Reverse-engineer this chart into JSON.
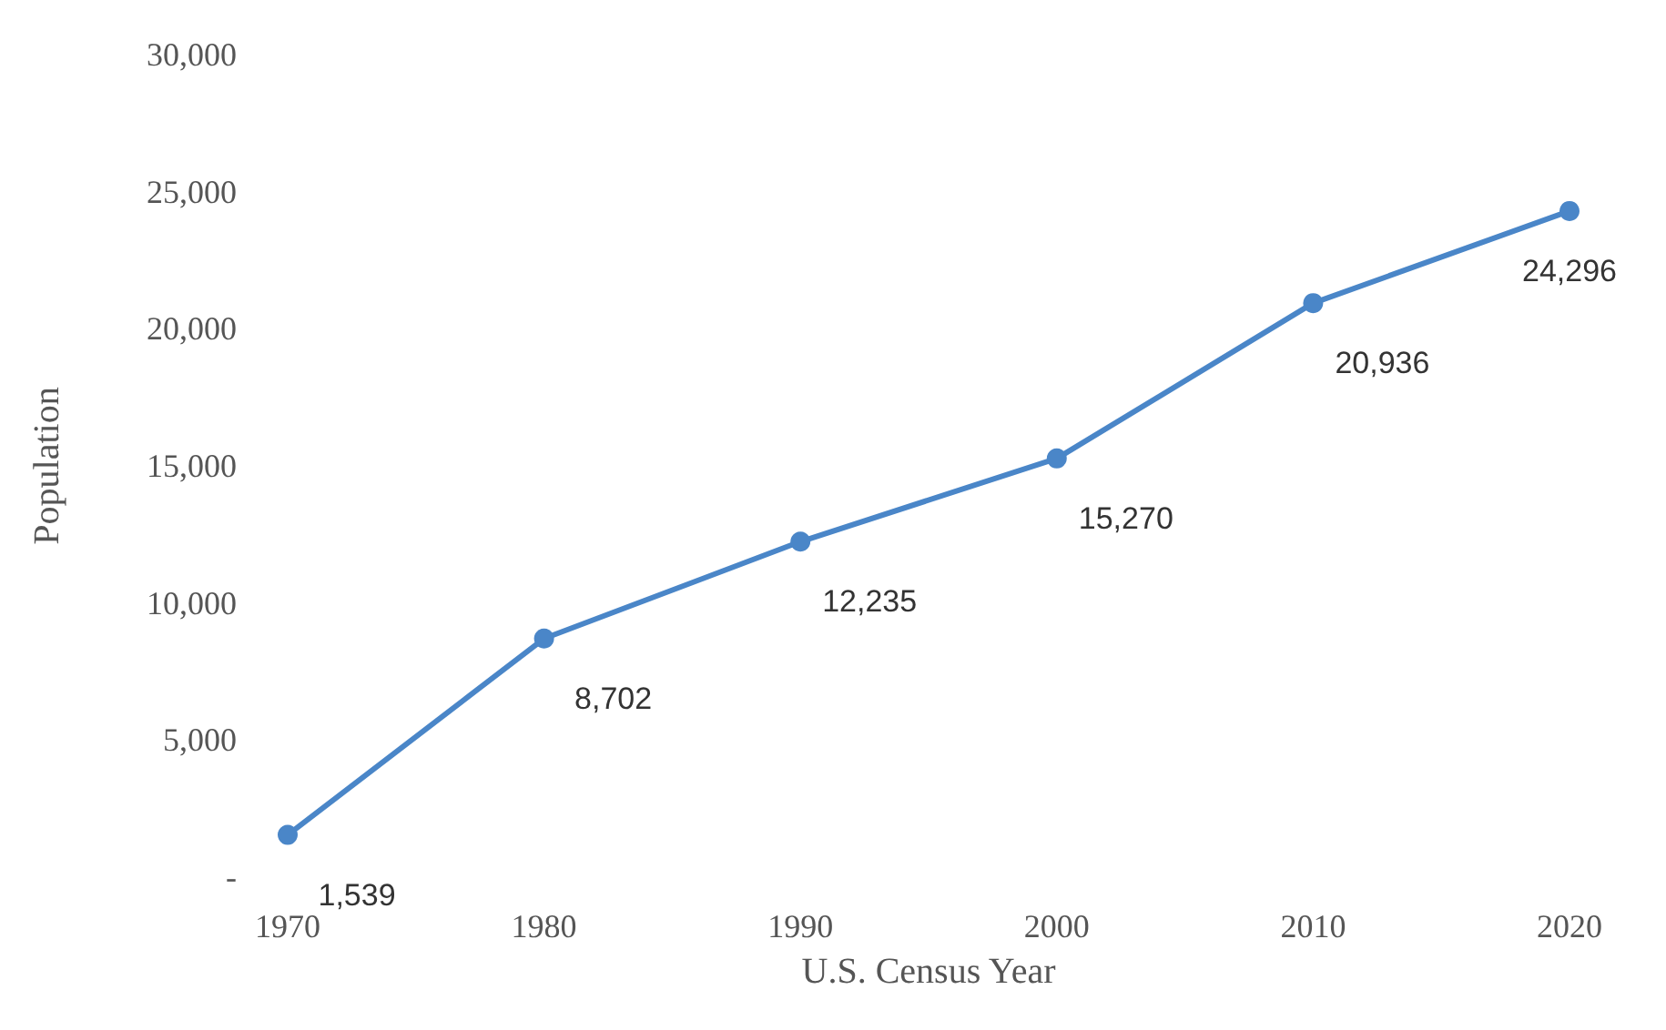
{
  "chart_data": {
    "type": "line",
    "xlabel": "U.S. Census Year",
    "ylabel": "Population",
    "categories": [
      "1970",
      "1980",
      "1990",
      "2000",
      "2010",
      "2020"
    ],
    "series": [
      {
        "color": "#4a86c8",
        "values": [
          1539,
          8702,
          12235,
          15270,
          20936,
          24296
        ],
        "value_labels": [
          "1,539",
          "8,702",
          "12,235",
          "15,270",
          "20,936",
          "24,296"
        ]
      }
    ],
    "ylim": [
      0,
      30000
    ],
    "yticks": [
      {
        "value": 0,
        "label": "-"
      },
      {
        "value": 5000,
        "label": "5,000"
      },
      {
        "value": 10000,
        "label": "10,000"
      },
      {
        "value": 15000,
        "label": "15,000"
      },
      {
        "value": 20000,
        "label": "20,000"
      },
      {
        "value": 25000,
        "label": "25,000"
      },
      {
        "value": 30000,
        "label": "30,000"
      }
    ],
    "marker": "circle",
    "line_style": "solid",
    "grid": false
  }
}
